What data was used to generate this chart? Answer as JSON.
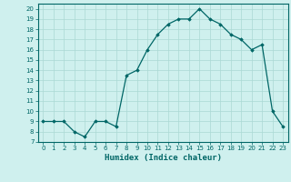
{
  "x": [
    0,
    1,
    2,
    3,
    4,
    5,
    6,
    7,
    8,
    9,
    10,
    11,
    12,
    13,
    14,
    15,
    16,
    17,
    18,
    19,
    20,
    21,
    22,
    23
  ],
  "y": [
    9,
    9,
    9,
    8,
    7.5,
    9,
    9,
    8.5,
    13.5,
    14,
    16,
    17.5,
    18.5,
    19,
    19,
    20,
    19,
    18.5,
    17.5,
    17,
    16,
    16.5,
    10,
    8.5
  ],
  "line_color": "#006666",
  "marker": "D",
  "marker_size": 1.8,
  "linewidth": 0.9,
  "xlabel": "Humidex (Indice chaleur)",
  "ylim": [
    7,
    20.5
  ],
  "xlim": [
    -0.5,
    23.5
  ],
  "yticks": [
    7,
    8,
    9,
    10,
    11,
    12,
    13,
    14,
    15,
    16,
    17,
    18,
    19,
    20
  ],
  "xticks": [
    0,
    1,
    2,
    3,
    4,
    5,
    6,
    7,
    8,
    9,
    10,
    11,
    12,
    13,
    14,
    15,
    16,
    17,
    18,
    19,
    20,
    21,
    22,
    23
  ],
  "bg_color": "#cff0ee",
  "grid_color": "#aad8d4",
  "line_dark": "#006655",
  "tick_label_fontsize": 5.0,
  "xlabel_fontsize": 6.5,
  "xlabel_fontfamily": "monospace"
}
